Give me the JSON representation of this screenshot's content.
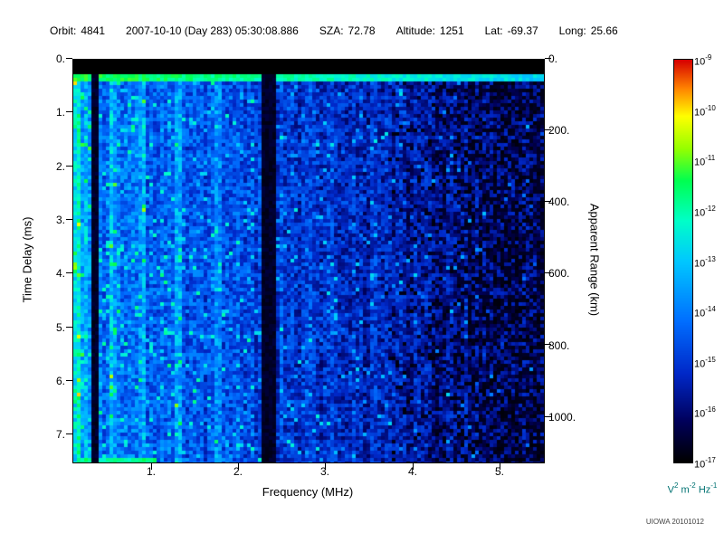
{
  "header": {
    "orbit_label": "Orbit:",
    "orbit": "4841",
    "datetime": "2007-10-10 (Day 283) 05:30:08.886",
    "sza_label": "SZA:",
    "sza": "72.78",
    "altitude_label": "Altitude:",
    "altitude": "1251",
    "lat_label": "Lat:",
    "lat": "-69.37",
    "long_label": "Long:",
    "long": "25.66"
  },
  "chart_data": {
    "type": "heatmap",
    "title": "",
    "xlabel": "Frequency (MHz)",
    "ylabel_left": "Time Delay (ms)",
    "ylabel_right": "Apparent Range (km)",
    "x_range_mhz": [
      0.1,
      5.5
    ],
    "y_range_ms": [
      0,
      7.5
    ],
    "right_axis_range_km": [
      0,
      1125
    ],
    "xticks": [
      "1.",
      "2.",
      "3.",
      "4.",
      "5."
    ],
    "xtick_values": [
      1,
      2,
      3,
      4,
      5
    ],
    "yticks": [
      "0.",
      "1.",
      "2.",
      "3.",
      "4.",
      "5.",
      "6.",
      "7."
    ],
    "ytick_values": [
      0,
      1,
      2,
      3,
      4,
      5,
      6,
      7
    ],
    "right_ticks": [
      "0.",
      "200.",
      "400.",
      "600.",
      "800.",
      "1000."
    ],
    "right_tick_values": [
      0,
      200,
      400,
      600,
      800,
      1000
    ],
    "colorbar": {
      "base": "10",
      "exponents": [
        "-9",
        "-10",
        "-11",
        "-12",
        "-13",
        "-14",
        "-15",
        "-16",
        "-17"
      ],
      "min_exp": -17,
      "max_exp": -9,
      "units_color": "#007272"
    },
    "units": {
      "u0": "V",
      "e0": "2",
      "u1": "m",
      "e1": "-2",
      "u2": "Hz",
      "e2": "-1"
    },
    "colormap_stops": [
      [
        0.0,
        0,
        0,
        0
      ],
      [
        0.1,
        0,
        0,
        90
      ],
      [
        0.22,
        0,
        40,
        200
      ],
      [
        0.35,
        0,
        110,
        255
      ],
      [
        0.5,
        0,
        200,
        255
      ],
      [
        0.6,
        0,
        255,
        200
      ],
      [
        0.7,
        0,
        255,
        80
      ],
      [
        0.78,
        150,
        255,
        0
      ],
      [
        0.86,
        255,
        255,
        0
      ],
      [
        0.93,
        255,
        130,
        0
      ],
      [
        1.0,
        215,
        0,
        0
      ]
    ],
    "features": {
      "seed": 20101012,
      "top_black_band_ms": [
        0,
        0.28
      ],
      "surface_echo_ms": [
        0.28,
        0.4
      ],
      "dark_bands_mhz": [
        [
          0.32,
          0.38
        ],
        [
          2.28,
          2.42
        ]
      ],
      "bright_bands_mhz": [
        0.13,
        0.55,
        0.9,
        1.3,
        1.75
      ],
      "noise_fadeout_above_mhz": 3.6,
      "bottom_streak": {
        "ms": [
          7.42,
          7.5
        ],
        "mhz": [
          0.2,
          1.05
        ]
      }
    },
    "description": "Radar sounder ionogram: diffuse blue/cyan noise strongest below ~2.3 MHz, black absorption bands near 0.35 MHz and 2.35 MHz, black band at zero delay with a bright green direct-signal line near 0.35 ms, signal fading to black speckle above ~4 MHz, intensity scale 1e-17 to 1e-9 V^2 m^-2 Hz^-1."
  },
  "credit": "UIOWA 20101012"
}
